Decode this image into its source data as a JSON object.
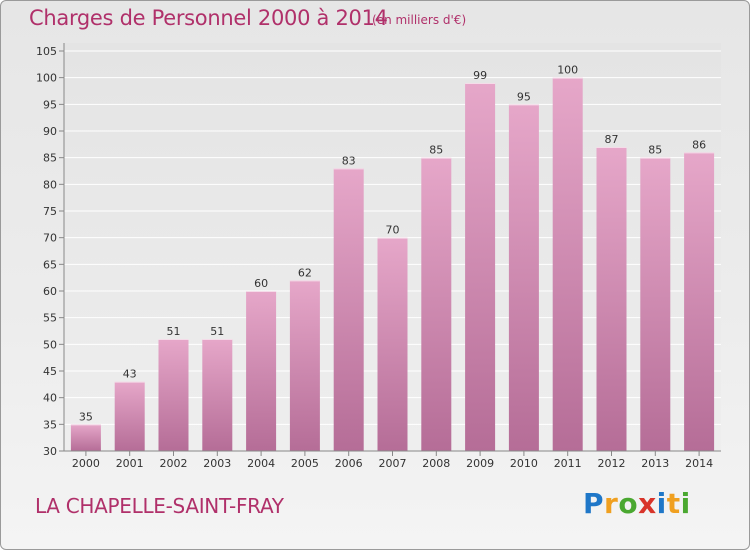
{
  "header": {
    "title": "Charges de Personnel 2000 à 2014",
    "subtitle": "(en milliers d'€)"
  },
  "footer": {
    "commune": "LA CHAPELLE-SAINT-FRAY",
    "logo_letters": [
      "P",
      "r",
      "o",
      "x",
      "i",
      "t",
      "i"
    ],
    "logo_colors": [
      "#1f77c8",
      "#f0a020",
      "#4aa830",
      "#d8342a",
      "#1f77c8",
      "#f0a020",
      "#4aa830"
    ]
  },
  "colors": {
    "bar": "#d488b2",
    "bar_top": "#e6a7c9",
    "bar_bottom": "#b56d97",
    "text": "#333333",
    "accent": "#b0306a"
  },
  "chart_data": {
    "type": "bar",
    "categories": [
      "2000",
      "2001",
      "2002",
      "2003",
      "2004",
      "2005",
      "2006",
      "2007",
      "2008",
      "2009",
      "2010",
      "2011",
      "2012",
      "2013",
      "2014"
    ],
    "values": [
      35,
      43,
      51,
      51,
      60,
      62,
      83,
      70,
      85,
      99,
      95,
      100,
      87,
      85,
      86
    ],
    "ylim": [
      30,
      105
    ],
    "yticks": [
      30,
      35,
      40,
      45,
      50,
      55,
      60,
      65,
      70,
      75,
      80,
      85,
      90,
      95,
      100,
      105
    ],
    "grid": true,
    "data_labels": true
  }
}
